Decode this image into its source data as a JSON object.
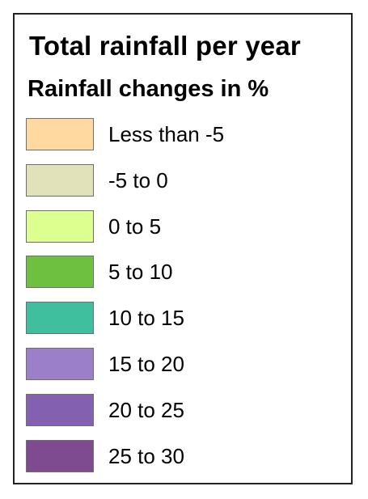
{
  "legend": {
    "title": "Total rainfall per year",
    "subtitle": "Rainfall changes in %",
    "items": [
      {
        "label": "Less than -5",
        "color": "#ffd9a0"
      },
      {
        "label": "-5 to 0",
        "color": "#e1e2b9"
      },
      {
        "label": "0 to 5",
        "color": "#ddff8f"
      },
      {
        "label": "5 to 10",
        "color": "#6ec040"
      },
      {
        "label": "10 to 15",
        "color": "#40bf9f"
      },
      {
        "label": "15 to 20",
        "color": "#9b80c9"
      },
      {
        "label": "20 to 25",
        "color": "#8360b0"
      },
      {
        "label": "25 to 30",
        "color": "#7e4b90"
      }
    ]
  }
}
